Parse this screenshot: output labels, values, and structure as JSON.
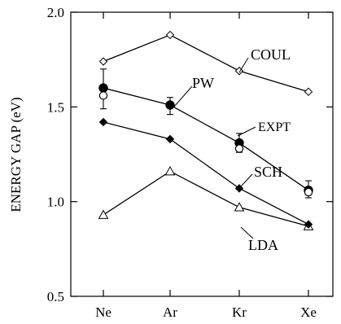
{
  "chart_data": {
    "type": "line",
    "title": "",
    "xlabel": "",
    "ylabel": "ENERGY GAP (eV)",
    "categories": [
      "Ne",
      "Ar",
      "Kr",
      "Xe"
    ],
    "ylim": [
      0.5,
      2.0
    ],
    "yticks": [
      "0.5",
      "1.0",
      "1.5",
      "2.0"
    ],
    "grid": false,
    "series": [
      {
        "name": "COUL",
        "marker": "open-diamond",
        "connected": true,
        "values": [
          1.74,
          1.88,
          1.69,
          1.58
        ]
      },
      {
        "name": "PW",
        "marker": "filled-circle",
        "connected": true,
        "values": [
          1.6,
          1.51,
          1.31,
          1.06
        ],
        "error_bars": [
          [
            1.49,
            1.7
          ],
          [
            1.46,
            1.55
          ],
          [
            1.26,
            1.36
          ],
          [
            1.02,
            1.11
          ]
        ]
      },
      {
        "name": "EXPT",
        "marker": "open-circle",
        "connected": false,
        "values": [
          1.56,
          null,
          1.28,
          1.05
        ]
      },
      {
        "name": "SCH",
        "marker": "filled-diamond",
        "connected": true,
        "values": [
          1.42,
          1.33,
          1.07,
          0.88
        ]
      },
      {
        "name": "LDA",
        "marker": "open-triangle",
        "connected": true,
        "values": [
          0.93,
          1.16,
          0.97,
          0.87
        ]
      }
    ]
  }
}
